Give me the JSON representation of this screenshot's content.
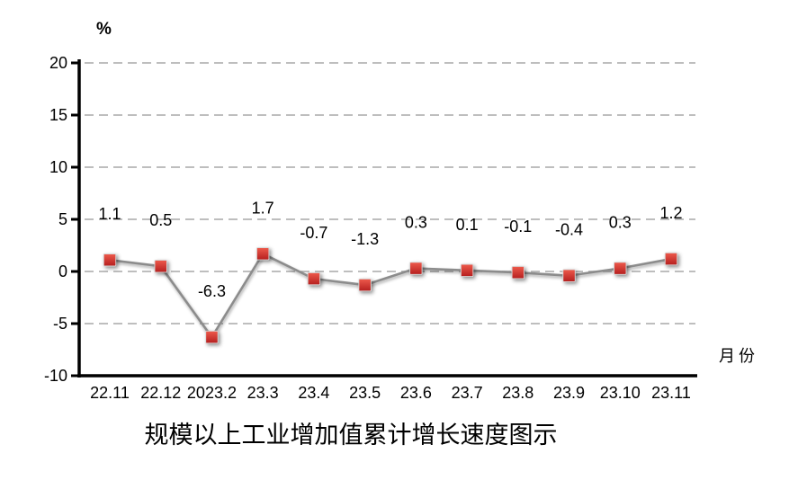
{
  "chart_data": {
    "type": "line",
    "title": "规模以上工业增加值累计增长速度图示",
    "ylabel": "%",
    "xlabel": "月份",
    "categories": [
      "22.11",
      "22.12",
      "2023.2",
      "23.3",
      "23.4",
      "23.5",
      "23.6",
      "23.7",
      "23.8",
      "23.9",
      "23.10",
      "23.11"
    ],
    "series": [
      {
        "name": "规模以上工业增加值累计增长速度",
        "values": [
          1.1,
          0.5,
          -6.3,
          1.7,
          -0.7,
          -1.3,
          0.3,
          0.1,
          -0.1,
          -0.4,
          0.3,
          1.2
        ]
      }
    ],
    "data_labels": [
      "1.1",
      "0.5",
      "-6.3",
      "1.7",
      "-0.7",
      "-1.3",
      "0.3",
      "0.1",
      "-0.1",
      "-0.4",
      "0.3",
      "1.2"
    ],
    "y_ticks": [
      20,
      15,
      10,
      5,
      0,
      -5,
      -10
    ],
    "ylim": [
      -10,
      20
    ],
    "grid": "horizontal-dashed",
    "legend": "none",
    "marker": "square",
    "colors": {
      "marker_light": "#ee5a4c",
      "marker_dark": "#b51f1f",
      "marker_border": "#d9d9d9",
      "line": "#8c8c8c",
      "grid": "#b5b5b5",
      "axis": "#000000",
      "text": "#000000",
      "background": "#ffffff"
    }
  }
}
